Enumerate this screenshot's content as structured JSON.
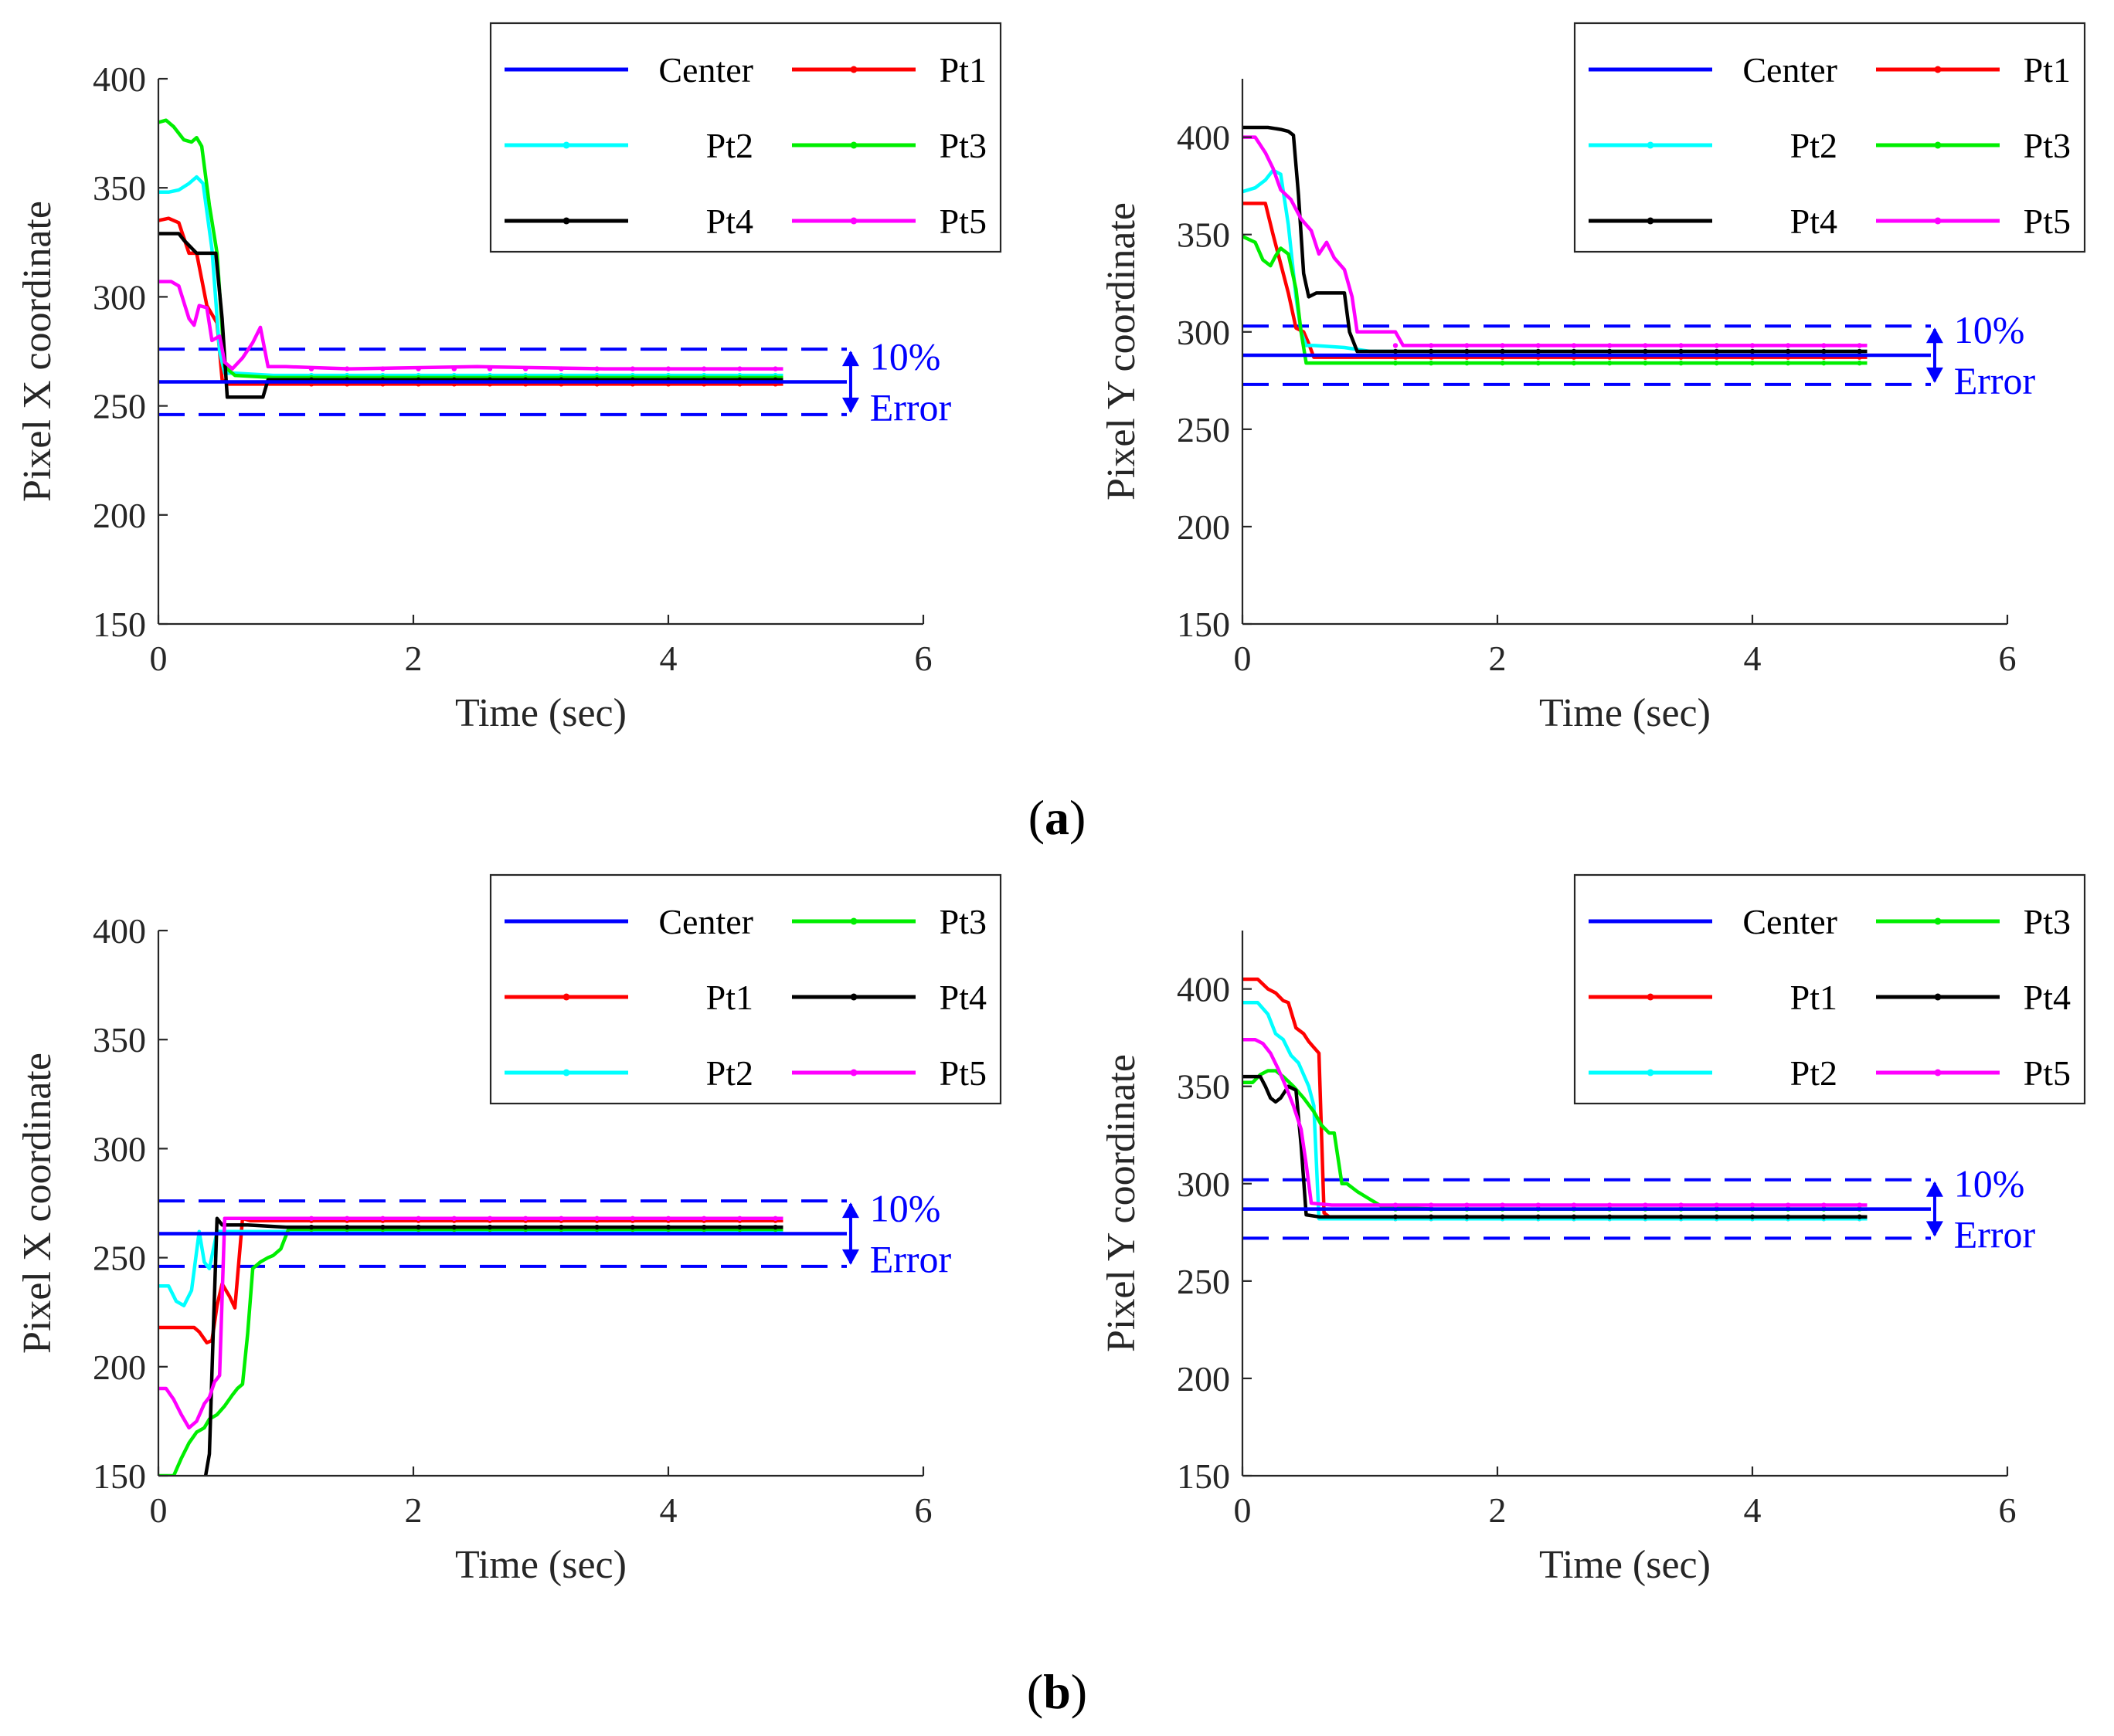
{
  "figure": {
    "caption_a": "a",
    "caption_b": "b"
  },
  "colors": {
    "Center": "#0000ff",
    "Pt1": "#ff0000",
    "Pt2": "#00ffff",
    "Pt3": "#00ee00",
    "Pt4": "#000000",
    "Pt5": "#ff00ff",
    "band": "#0000ff"
  },
  "chart_data": [
    {
      "id": "a-x",
      "type": "line",
      "xlabel": "Time (sec)",
      "ylabel": "Pixel X coordinate",
      "xlim": [
        0,
        6
      ],
      "ylim": [
        150,
        400
      ],
      "xticks": [
        0,
        2,
        4,
        6
      ],
      "yticks": [
        150,
        200,
        250,
        300,
        350,
        400
      ],
      "grid": false,
      "legend": [
        "Center",
        "Pt1",
        "Pt2",
        "Pt3",
        "Pt4",
        "Pt5"
      ],
      "legend_position": "top-right",
      "center": 261,
      "band": [
        246,
        276
      ],
      "annotation": [
        "10%",
        "Error"
      ],
      "series": [
        {
          "name": "Pt1",
          "x": [
            0,
            0.08,
            0.16,
            0.24,
            0.3,
            0.38,
            0.46,
            0.5,
            0.55,
            0.7,
            0.9,
            1.2,
            4.9
          ],
          "y": [
            335,
            336,
            334,
            320,
            320,
            296,
            288,
            262,
            260,
            260,
            260,
            260,
            260
          ]
        },
        {
          "name": "Pt2",
          "x": [
            0,
            0.08,
            0.16,
            0.24,
            0.3,
            0.35,
            0.42,
            0.48,
            0.52,
            0.6,
            0.9,
            1.2,
            4.9
          ],
          "y": [
            348,
            348,
            349,
            352,
            355,
            352,
            322,
            275,
            265,
            265,
            264,
            264,
            264
          ]
        },
        {
          "name": "Pt3",
          "x": [
            0,
            0.06,
            0.12,
            0.2,
            0.26,
            0.3,
            0.34,
            0.4,
            0.46,
            0.52,
            0.6,
            0.9,
            1.2,
            4.9
          ],
          "y": [
            380,
            381,
            378,
            372,
            371,
            373,
            369,
            342,
            320,
            268,
            264,
            263,
            263,
            263
          ]
        },
        {
          "name": "Pt4",
          "x": [
            0,
            0.16,
            0.2,
            0.3,
            0.4,
            0.45,
            0.5,
            0.54,
            0.82,
            0.86,
            1.0,
            4.9
          ],
          "y": [
            329,
            329,
            326,
            320,
            320,
            320,
            290,
            254,
            254,
            262,
            262,
            262
          ]
        },
        {
          "name": "Pt5",
          "x": [
            0,
            0.1,
            0.16,
            0.24,
            0.28,
            0.32,
            0.38,
            0.42,
            0.48,
            0.52,
            0.58,
            0.66,
            0.74,
            0.8,
            0.86,
            1.0,
            1.5,
            2.5,
            3.5,
            4.9
          ],
          "y": [
            307,
            307,
            305,
            290,
            287,
            296,
            295,
            280,
            282,
            270,
            267,
            272,
            279,
            286,
            268,
            268,
            267,
            268,
            267,
            267
          ]
        }
      ]
    },
    {
      "id": "a-y",
      "type": "line",
      "xlabel": "Time (sec)",
      "ylabel": "Pixel Y coordinate",
      "xlim": [
        0,
        6
      ],
      "ylim": [
        150,
        430
      ],
      "xticks": [
        0,
        2,
        4,
        6
      ],
      "yticks": [
        150,
        200,
        250,
        300,
        350,
        400
      ],
      "grid": false,
      "legend": [
        "Center",
        "Pt1",
        "Pt2",
        "Pt3",
        "Pt4",
        "Pt5"
      ],
      "legend_position": "top-right",
      "center": 288,
      "band": [
        273,
        303
      ],
      "annotation": [
        "10%",
        "Error"
      ],
      "series": [
        {
          "name": "Pt1",
          "x": [
            0,
            0.18,
            0.24,
            0.3,
            0.36,
            0.42,
            0.48,
            0.52,
            0.56,
            0.7,
            1.0,
            4.9
          ],
          "y": [
            366,
            366,
            350,
            335,
            320,
            302,
            300,
            294,
            287,
            287,
            287,
            287
          ]
        },
        {
          "name": "Pt2",
          "x": [
            0,
            0.1,
            0.18,
            0.24,
            0.3,
            0.36,
            0.42,
            0.46,
            0.5,
            0.56,
            0.8,
            1.0,
            4.9
          ],
          "y": [
            372,
            374,
            378,
            383,
            381,
            355,
            318,
            300,
            293,
            293,
            292,
            290,
            290
          ]
        },
        {
          "name": "Pt3",
          "x": [
            0,
            0.1,
            0.16,
            0.22,
            0.26,
            0.3,
            0.36,
            0.42,
            0.46,
            0.5,
            1.0,
            4.9
          ],
          "y": [
            349,
            346,
            337,
            334,
            339,
            343,
            340,
            322,
            300,
            284,
            284,
            284
          ]
        },
        {
          "name": "Pt4",
          "x": [
            0,
            0.2,
            0.3,
            0.36,
            0.4,
            0.44,
            0.48,
            0.52,
            0.58,
            0.8,
            0.84,
            0.9,
            4.9
          ],
          "y": [
            405,
            405,
            404,
            403,
            401,
            370,
            330,
            318,
            320,
            320,
            300,
            290,
            290
          ]
        },
        {
          "name": "Pt5",
          "x": [
            0,
            0.1,
            0.18,
            0.24,
            0.3,
            0.38,
            0.46,
            0.54,
            0.6,
            0.66,
            0.72,
            0.8,
            0.86,
            0.9,
            1.2,
            1.26,
            1.32,
            4.9
          ],
          "y": [
            400,
            400,
            392,
            384,
            373,
            368,
            358,
            352,
            340,
            346,
            338,
            332,
            318,
            300,
            300,
            293,
            293,
            293
          ]
        }
      ]
    },
    {
      "id": "b-x",
      "type": "line",
      "xlabel": "Time (sec)",
      "ylabel": "Pixel X coordinate",
      "xlim": [
        0,
        6
      ],
      "ylim": [
        150,
        400
      ],
      "xticks": [
        0,
        2,
        4,
        6
      ],
      "yticks": [
        150,
        200,
        250,
        300,
        350,
        400
      ],
      "grid": false,
      "legend": [
        "Center",
        "Pt3",
        "Pt1",
        "Pt4",
        "Pt2",
        "Pt5"
      ],
      "legend_position": "top-right",
      "center": 261,
      "band": [
        246,
        276
      ],
      "annotation": [
        "10%",
        "Error"
      ],
      "series": [
        {
          "name": "Pt1",
          "x": [
            0,
            0.1,
            0.2,
            0.28,
            0.32,
            0.38,
            0.42,
            0.46,
            0.5,
            0.56,
            0.6,
            0.66,
            0.72,
            1.0,
            4.9
          ],
          "y": [
            218,
            218,
            218,
            218,
            216,
            211,
            212,
            228,
            238,
            232,
            227,
            268,
            267,
            267,
            267
          ]
        },
        {
          "name": "Pt2",
          "x": [
            0,
            0.08,
            0.14,
            0.2,
            0.26,
            0.32,
            0.36,
            0.4,
            0.46,
            0.52,
            0.7,
            1.0,
            4.9
          ],
          "y": [
            237,
            237,
            230,
            228,
            235,
            262,
            248,
            245,
            262,
            262,
            262,
            262,
            262
          ]
        },
        {
          "name": "Pt3",
          "x": [
            0,
            0.12,
            0.18,
            0.24,
            0.3,
            0.36,
            0.4,
            0.46,
            0.52,
            0.58,
            0.62,
            0.66,
            0.7,
            0.74,
            0.8,
            0.86,
            0.9,
            0.96,
            1.02,
            1.2,
            4.9
          ],
          "y": [
            150,
            150,
            158,
            165,
            170,
            172,
            176,
            178,
            182,
            187,
            190,
            192,
            215,
            245,
            248,
            250,
            251,
            254,
            263,
            263,
            263
          ]
        },
        {
          "name": "Pt4",
          "x": [
            0.37,
            0.4,
            0.43,
            0.46,
            0.5,
            0.7,
            1.0,
            4.9
          ],
          "y": [
            150,
            160,
            215,
            268,
            265,
            265,
            264,
            264
          ]
        },
        {
          "name": "Pt5",
          "x": [
            0,
            0.06,
            0.12,
            0.18,
            0.24,
            0.3,
            0.36,
            0.4,
            0.44,
            0.48,
            0.52,
            0.56,
            0.62,
            0.8,
            1.0,
            4.9
          ],
          "y": [
            190,
            190,
            185,
            178,
            172,
            175,
            183,
            186,
            193,
            196,
            268,
            268,
            268,
            268,
            268,
            268
          ]
        }
      ]
    },
    {
      "id": "b-y",
      "type": "line",
      "xlabel": "Time (sec)",
      "ylabel": "Pixel Y coordinate",
      "xlim": [
        0,
        6
      ],
      "ylim": [
        150,
        430
      ],
      "xticks": [
        0,
        2,
        4,
        6
      ],
      "yticks": [
        150,
        200,
        250,
        300,
        350,
        400
      ],
      "grid": false,
      "legend": [
        "Center",
        "Pt3",
        "Pt1",
        "Pt4",
        "Pt2",
        "Pt5"
      ],
      "legend_position": "top-right",
      "center": 287,
      "band": [
        272,
        302
      ],
      "annotation": [
        "10%",
        "Error"
      ],
      "series": [
        {
          "name": "Pt1",
          "x": [
            0,
            0.12,
            0.2,
            0.26,
            0.32,
            0.36,
            0.42,
            0.48,
            0.52,
            0.56,
            0.6,
            0.64,
            0.7,
            0.8,
            1.0,
            4.9
          ],
          "y": [
            405,
            405,
            400,
            398,
            394,
            393,
            380,
            377,
            373,
            370,
            367,
            285,
            282,
            282,
            282,
            282
          ]
        },
        {
          "name": "Pt2",
          "x": [
            0,
            0.12,
            0.2,
            0.26,
            0.32,
            0.38,
            0.44,
            0.48,
            0.52,
            0.56,
            0.6,
            0.7,
            1.0,
            4.9
          ],
          "y": [
            393,
            393,
            387,
            377,
            374,
            366,
            362,
            356,
            350,
            340,
            282,
            282,
            282,
            282
          ]
        },
        {
          "name": "Pt3",
          "x": [
            0,
            0.08,
            0.14,
            0.2,
            0.26,
            0.32,
            0.4,
            0.48,
            0.56,
            0.62,
            0.68,
            0.72,
            0.78,
            0.82,
            0.9,
            1.0,
            1.1,
            1.5,
            4.9
          ],
          "y": [
            352,
            352,
            356,
            358,
            358,
            355,
            350,
            344,
            337,
            330,
            326,
            326,
            300,
            300,
            296,
            292,
            288,
            287,
            287
          ]
        },
        {
          "name": "Pt4",
          "x": [
            0,
            0.14,
            0.18,
            0.22,
            0.26,
            0.3,
            0.36,
            0.42,
            0.46,
            0.5,
            0.6,
            1.0,
            4.9
          ],
          "y": [
            355,
            355,
            350,
            344,
            342,
            344,
            350,
            348,
            320,
            284,
            283,
            283,
            283
          ]
        },
        {
          "name": "Pt5",
          "x": [
            0,
            0.1,
            0.16,
            0.22,
            0.28,
            0.34,
            0.4,
            0.46,
            0.5,
            0.54,
            0.7,
            1.0,
            4.9
          ],
          "y": [
            374,
            374,
            372,
            367,
            359,
            350,
            340,
            328,
            310,
            290,
            289,
            289,
            289
          ]
        }
      ]
    }
  ]
}
